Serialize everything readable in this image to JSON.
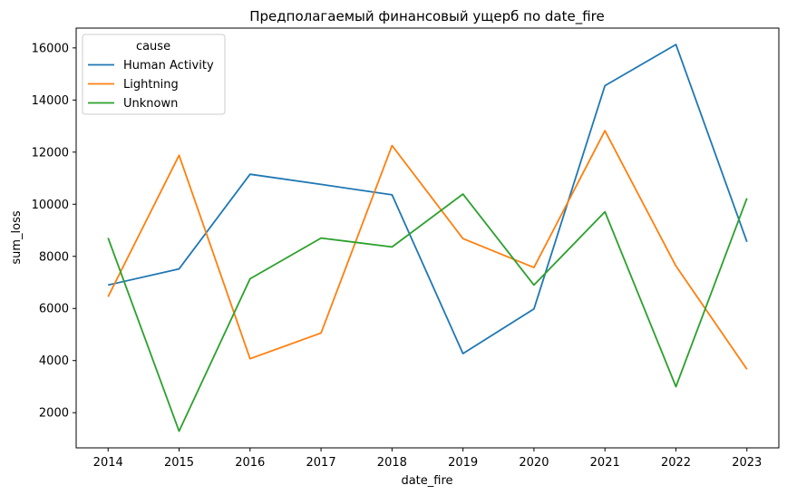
{
  "chart_data": {
    "type": "line",
    "title": "Предполагаемый финансовый ущерб по date_fire",
    "xlabel": "date_fire",
    "ylabel": "sum_loss",
    "x": [
      2014,
      2015,
      2016,
      2017,
      2018,
      2019,
      2020,
      2021,
      2022,
      2023
    ],
    "xticks": [
      "2014",
      "2015",
      "2016",
      "2017",
      "2018",
      "2019",
      "2020",
      "2021",
      "2022",
      "2023"
    ],
    "yticks": [
      "2000",
      "4000",
      "6000",
      "8000",
      "10000",
      "12000",
      "14000",
      "16000"
    ],
    "ytick_values": [
      2000,
      4000,
      6000,
      8000,
      10000,
      12000,
      14000,
      16000
    ],
    "ylim": [
      650,
      16760
    ],
    "xlim": [
      2013.55,
      2023.45
    ],
    "grid": false,
    "legend": {
      "title": "cause",
      "placement": "top-left"
    },
    "series": [
      {
        "name": "Human Activity",
        "color": "#1f77b4",
        "values": [
          6900,
          7520,
          11150,
          10760,
          10360,
          4270,
          5980,
          14550,
          16130,
          8560
        ]
      },
      {
        "name": "Lightning",
        "color": "#ff7f0e",
        "values": [
          6450,
          11880,
          4070,
          5060,
          12250,
          8680,
          7570,
          12820,
          7630,
          3670
        ]
      },
      {
        "name": "Unknown",
        "color": "#2ca02c",
        "values": [
          8710,
          1290,
          7140,
          8700,
          8360,
          10390,
          6900,
          9710,
          3000,
          10230
        ]
      }
    ]
  }
}
